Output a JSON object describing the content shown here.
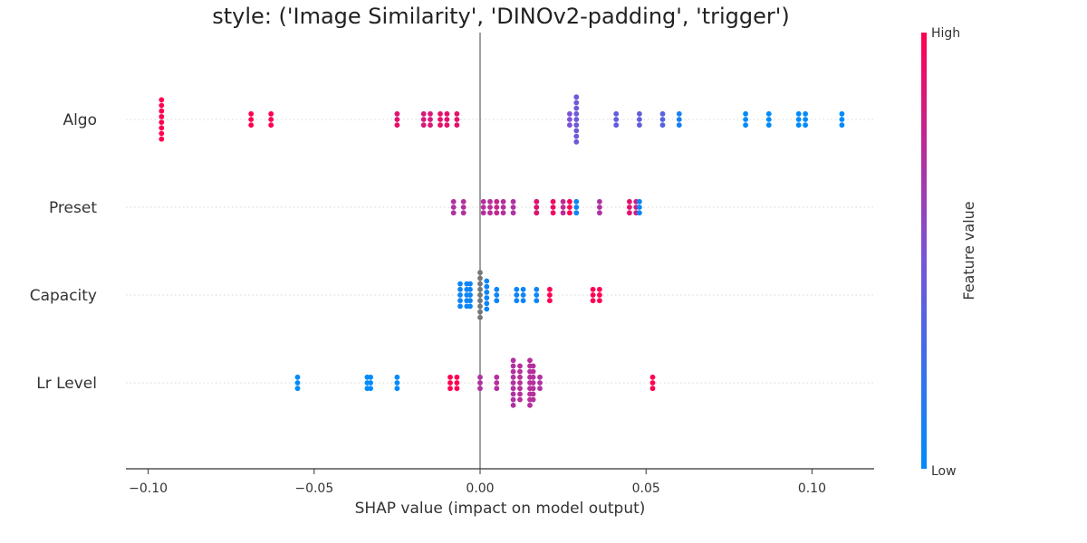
{
  "chart_data": {
    "type": "scatter",
    "title": "style: ('Image Similarity', 'DINOv2-padding', 'trigger')",
    "xlabel": "SHAP value (impact on model output)",
    "xlim": [
      -0.107,
      0.119
    ],
    "xticks": [
      -0.1,
      -0.05,
      0.0,
      0.05,
      0.1
    ],
    "xtick_labels": [
      "−0.10",
      "−0.05",
      "0.00",
      "0.05",
      "0.10"
    ],
    "grid": false,
    "legend": "colorbar-right",
    "colorbar": {
      "title": "Feature value",
      "high_label": "High",
      "low_label": "Low",
      "low_color": "#008bfb",
      "mid_color": "#7c52d6",
      "high_color": "#ff0052"
    },
    "zero_line_color": "#888888",
    "missing_color": "#777777",
    "features": [
      {
        "name": "Algo",
        "points": [
          {
            "x": -0.096,
            "v": 1.0,
            "n": 8
          },
          {
            "x": -0.069,
            "v": 1.0,
            "n": 3
          },
          {
            "x": -0.063,
            "v": 1.0,
            "n": 3
          },
          {
            "x": -0.025,
            "v": 0.9,
            "n": 3
          },
          {
            "x": -0.017,
            "v": 0.85,
            "n": 3
          },
          {
            "x": -0.015,
            "v": 0.85,
            "n": 3
          },
          {
            "x": -0.012,
            "v": 0.9,
            "n": 3
          },
          {
            "x": -0.01,
            "v": 0.9,
            "n": 3
          },
          {
            "x": -0.007,
            "v": 0.9,
            "n": 3
          },
          {
            "x": 0.027,
            "v": 0.5,
            "n": 3
          },
          {
            "x": 0.029,
            "v": 0.45,
            "n": 9
          },
          {
            "x": 0.041,
            "v": 0.4,
            "n": 3
          },
          {
            "x": 0.048,
            "v": 0.4,
            "n": 3
          },
          {
            "x": 0.055,
            "v": 0.35,
            "n": 3
          },
          {
            "x": 0.06,
            "v": 0.1,
            "n": 3
          },
          {
            "x": 0.08,
            "v": 0.0,
            "n": 3
          },
          {
            "x": 0.087,
            "v": 0.0,
            "n": 3
          },
          {
            "x": 0.096,
            "v": 0.0,
            "n": 3
          },
          {
            "x": 0.098,
            "v": 0.0,
            "n": 3
          },
          {
            "x": 0.109,
            "v": 0.0,
            "n": 3
          }
        ]
      },
      {
        "name": "Preset",
        "points": [
          {
            "x": -0.008,
            "v": 0.7,
            "n": 3
          },
          {
            "x": -0.005,
            "v": 0.7,
            "n": 3
          },
          {
            "x": 0.001,
            "v": 0.72,
            "n": 3
          },
          {
            "x": 0.003,
            "v": 0.72,
            "n": 3
          },
          {
            "x": 0.005,
            "v": 0.78,
            "n": 3
          },
          {
            "x": 0.007,
            "v": 0.72,
            "n": 3
          },
          {
            "x": 0.01,
            "v": 0.7,
            "n": 3
          },
          {
            "x": 0.017,
            "v": 0.05,
            "n": 3
          },
          {
            "x": 0.017,
            "v": 0.9,
            "n": 3
          },
          {
            "x": 0.022,
            "v": 0.95,
            "n": 3
          },
          {
            "x": 0.025,
            "v": 0.75,
            "n": 3
          },
          {
            "x": 0.027,
            "v": 1.0,
            "n": 3
          },
          {
            "x": 0.029,
            "v": 0.05,
            "n": 3
          },
          {
            "x": 0.036,
            "v": 0.7,
            "n": 3
          },
          {
            "x": 0.045,
            "v": 0.9,
            "n": 3
          },
          {
            "x": 0.047,
            "v": 0.8,
            "n": 3
          },
          {
            "x": 0.048,
            "v": 0.05,
            "n": 3
          }
        ]
      },
      {
        "name": "Capacity",
        "points": [
          {
            "x": -0.006,
            "v": 0.05,
            "n": 5
          },
          {
            "x": -0.004,
            "v": 0.05,
            "n": 5
          },
          {
            "x": -0.003,
            "v": 0.05,
            "n": 5
          },
          {
            "x": 0.0,
            "v": -1,
            "n": 9
          },
          {
            "x": 0.002,
            "v": 0.05,
            "n": 6
          },
          {
            "x": 0.005,
            "v": 0.05,
            "n": 3
          },
          {
            "x": 0.011,
            "v": 0.05,
            "n": 3
          },
          {
            "x": 0.013,
            "v": 0.05,
            "n": 3
          },
          {
            "x": 0.017,
            "v": 0.05,
            "n": 3
          },
          {
            "x": 0.021,
            "v": 1.0,
            "n": 3
          },
          {
            "x": 0.034,
            "v": 1.0,
            "n": 3
          },
          {
            "x": 0.036,
            "v": 1.0,
            "n": 3
          }
        ]
      },
      {
        "name": "Lr Level",
        "points": [
          {
            "x": -0.055,
            "v": 0.0,
            "n": 3
          },
          {
            "x": -0.034,
            "v": 0.0,
            "n": 3
          },
          {
            "x": -0.033,
            "v": 0.0,
            "n": 3
          },
          {
            "x": -0.025,
            "v": 0.0,
            "n": 3
          },
          {
            "x": -0.009,
            "v": 1.0,
            "n": 3
          },
          {
            "x": -0.007,
            "v": 1.0,
            "n": 3
          },
          {
            "x": 0.0,
            "v": 0.7,
            "n": 3
          },
          {
            "x": 0.005,
            "v": 0.72,
            "n": 3
          },
          {
            "x": 0.01,
            "v": 0.7,
            "n": 9
          },
          {
            "x": 0.012,
            "v": 0.72,
            "n": 7
          },
          {
            "x": 0.015,
            "v": 0.72,
            "n": 9
          },
          {
            "x": 0.016,
            "v": 0.72,
            "n": 7
          },
          {
            "x": 0.018,
            "v": 0.7,
            "n": 3
          },
          {
            "x": 0.052,
            "v": 1.0,
            "n": 3
          }
        ]
      }
    ]
  }
}
